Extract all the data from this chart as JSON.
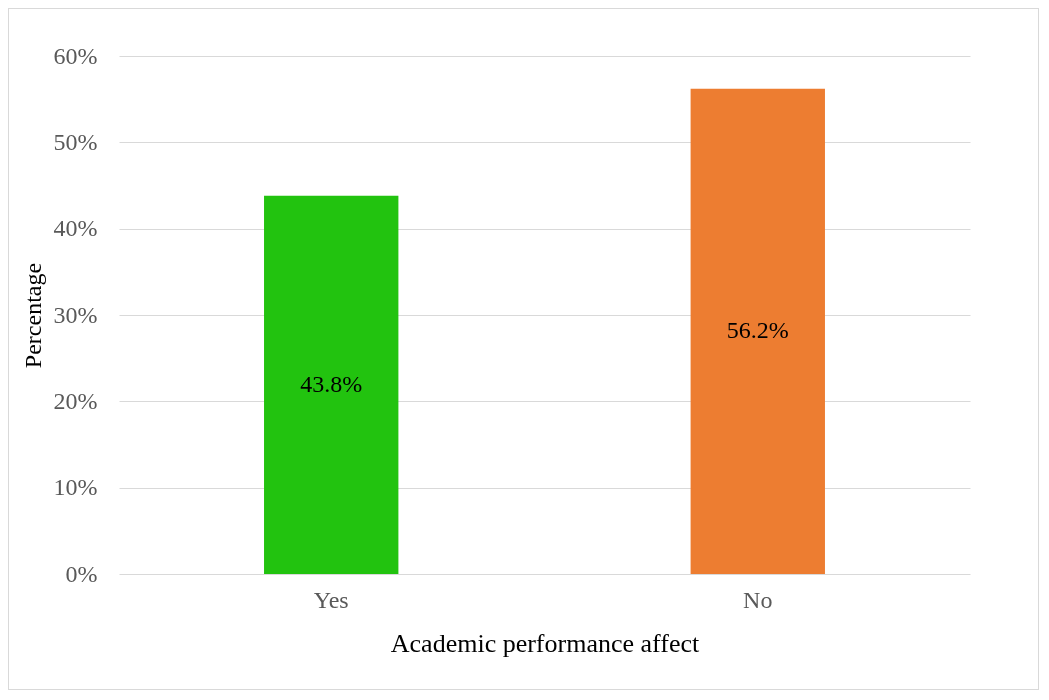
{
  "chart_data": {
    "type": "bar",
    "xlabel": "Academic performance affect",
    "ylabel": "Percentage",
    "categories": [
      "Yes",
      "No"
    ],
    "values": [
      43.8,
      56.2
    ],
    "colors": [
      "#22c30f",
      "#ed7d31"
    ],
    "value_labels": [
      "43.8%",
      "56.2%"
    ],
    "ylim": [
      0,
      60
    ],
    "yticks": [
      {
        "value": 0,
        "label": "0%"
      },
      {
        "value": 10,
        "label": "10%"
      },
      {
        "value": 20,
        "label": "20%"
      },
      {
        "value": 30,
        "label": "30%"
      },
      {
        "value": 40,
        "label": "40%"
      },
      {
        "value": 50,
        "label": "50%"
      },
      {
        "value": 60,
        "label": "60%"
      }
    ],
    "grid": "y"
  }
}
